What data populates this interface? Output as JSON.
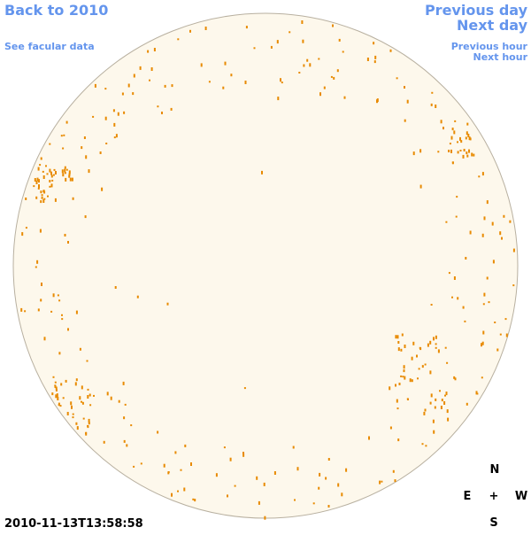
{
  "nav": {
    "back": "Back to 2010",
    "facular_data": "See facular data",
    "previous_day": "Previous day",
    "next_day": "Next day",
    "previous_hour": "Previous hour",
    "next_hour": "Next hour"
  },
  "compass": {
    "north": "N",
    "east": "E",
    "center": "+",
    "west": "W",
    "south": "S"
  },
  "timestamp": "2010-11-13T13:58:58"
}
